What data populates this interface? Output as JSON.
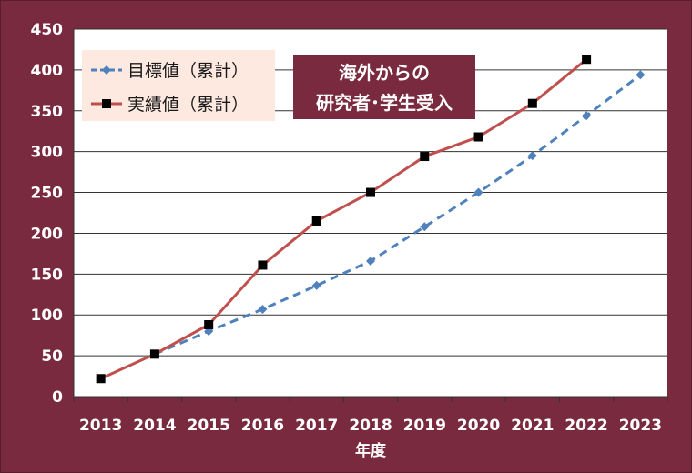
{
  "colors": {
    "background": "#7a2a3e",
    "plot_area": "#ffffff",
    "gridline": "#333333",
    "target_line": "#4f81bd",
    "actual_line": "#c0504d",
    "actual_marker": "#000000",
    "legend_box": "#fde9e0",
    "title_box": "#7a2a3e"
  },
  "chart_data": {
    "type": "line",
    "title_lines": [
      "海外からの",
      "研究者･学生受入"
    ],
    "xlabel": "年度",
    "ylabel": "",
    "ylim": [
      0,
      450
    ],
    "yticks": [
      0,
      50,
      100,
      150,
      200,
      250,
      300,
      350,
      400,
      450
    ],
    "categories": [
      "2013",
      "2014",
      "2015",
      "2016",
      "2017",
      "2018",
      "2019",
      "2020",
      "2021",
      "2022",
      "2023"
    ],
    "grid": true,
    "legend_position": "top-left",
    "series": [
      {
        "name": "目標値（累計）",
        "style": "dashed",
        "marker": "diamond",
        "values": [
          null,
          52,
          80,
          107,
          136,
          166,
          208,
          250,
          295,
          344,
          394
        ]
      },
      {
        "name": "実績値（累計）",
        "style": "solid",
        "marker": "square",
        "values": [
          22,
          52,
          88,
          161,
          215,
          250,
          294,
          318,
          359,
          413,
          null
        ]
      }
    ]
  }
}
